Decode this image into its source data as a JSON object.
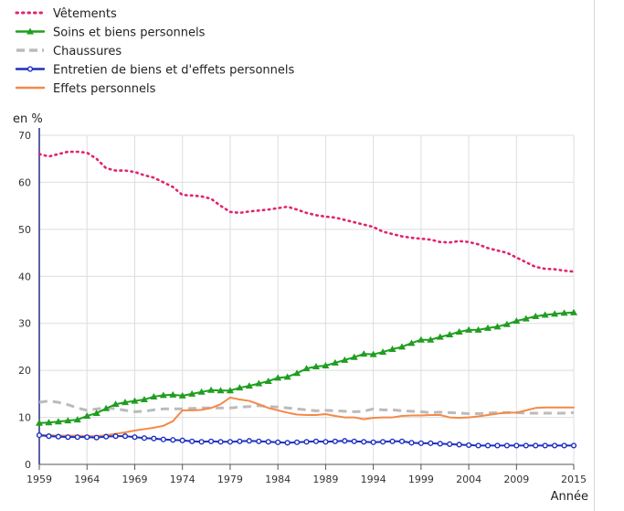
{
  "chart_data": {
    "type": "line",
    "title": "",
    "xlabel": "Année",
    "ylabel": "en %",
    "xlim": [
      1959,
      2015
    ],
    "ylim": [
      0,
      70
    ],
    "y_ticks": [
      0,
      10,
      20,
      30,
      40,
      50,
      60,
      70
    ],
    "x_ticks": [
      1959,
      1964,
      1969,
      1974,
      1979,
      1984,
      1989,
      1994,
      1999,
      2004,
      2009,
      2015
    ],
    "grid": "x and y",
    "legend_position": "top-left",
    "series": [
      {
        "name": "Vêtements",
        "color": "#e0246e",
        "style": "dotted",
        "x": [
          1959,
          1960,
          1961,
          1962,
          1963,
          1964,
          1965,
          1966,
          1967,
          1968,
          1969,
          1970,
          1971,
          1972,
          1973,
          1974,
          1975,
          1976,
          1977,
          1978,
          1979,
          1980,
          1981,
          1982,
          1983,
          1984,
          1985,
          1986,
          1987,
          1988,
          1989,
          1990,
          1991,
          1992,
          1993,
          1994,
          1995,
          1996,
          1997,
          1998,
          1999,
          2000,
          2001,
          2002,
          2003,
          2004,
          2005,
          2006,
          2007,
          2008,
          2009,
          2010,
          2011,
          2012,
          2013,
          2014,
          2015
        ],
        "values": [
          66.0,
          65.5,
          66.0,
          66.5,
          66.5,
          66.3,
          65.0,
          63.0,
          62.5,
          62.5,
          62.2,
          61.5,
          61.0,
          60.0,
          59.0,
          57.3,
          57.2,
          57.0,
          56.5,
          55.0,
          53.7,
          53.5,
          53.8,
          54.0,
          54.2,
          54.5,
          54.8,
          54.2,
          53.5,
          53.0,
          52.7,
          52.5,
          52.0,
          51.5,
          51.0,
          50.5,
          49.5,
          49.0,
          48.5,
          48.2,
          48.0,
          47.8,
          47.3,
          47.2,
          47.5,
          47.3,
          46.8,
          46.0,
          45.5,
          45.0,
          44.0,
          43.0,
          42.0,
          41.6,
          41.5,
          41.2,
          41.0
        ]
      },
      {
        "name": "Soins et biens personnels",
        "color": "#1f9e1f",
        "style": "solid-triangle",
        "x": [
          1959,
          1960,
          1961,
          1962,
          1963,
          1964,
          1965,
          1966,
          1967,
          1968,
          1969,
          1970,
          1971,
          1972,
          1973,
          1974,
          1975,
          1976,
          1977,
          1978,
          1979,
          1980,
          1981,
          1982,
          1983,
          1984,
          1985,
          1986,
          1987,
          1988,
          1989,
          1990,
          1991,
          1992,
          1993,
          1994,
          1995,
          1996,
          1997,
          1998,
          1999,
          2000,
          2001,
          2002,
          2003,
          2004,
          2005,
          2006,
          2007,
          2008,
          2009,
          2010,
          2011,
          2012,
          2013,
          2014,
          2015
        ],
        "values": [
          8.8,
          8.9,
          9.1,
          9.3,
          9.5,
          10.3,
          10.9,
          11.9,
          12.8,
          13.2,
          13.5,
          13.8,
          14.4,
          14.7,
          14.8,
          14.6,
          15.0,
          15.4,
          15.8,
          15.7,
          15.7,
          16.3,
          16.7,
          17.2,
          17.7,
          18.4,
          18.6,
          19.4,
          20.4,
          20.8,
          21.0,
          21.6,
          22.2,
          22.8,
          23.5,
          23.4,
          23.9,
          24.5,
          25.0,
          25.8,
          26.5,
          26.5,
          27.1,
          27.6,
          28.2,
          28.6,
          28.6,
          29.0,
          29.3,
          29.8,
          30.5,
          31.0,
          31.5,
          31.8,
          32.0,
          32.2,
          32.3
        ]
      },
      {
        "name": "Chaussures",
        "color": "#bbbbbb",
        "style": "dashed",
        "x": [
          1959,
          1960,
          1961,
          1962,
          1963,
          1964,
          1965,
          1966,
          1967,
          1968,
          1969,
          1970,
          1971,
          1972,
          1973,
          1974,
          1975,
          1976,
          1977,
          1978,
          1979,
          1980,
          1981,
          1982,
          1983,
          1984,
          1985,
          1986,
          1987,
          1988,
          1989,
          1990,
          1991,
          1992,
          1993,
          1994,
          1995,
          1996,
          1997,
          1998,
          1999,
          2000,
          2001,
          2002,
          2003,
          2004,
          2005,
          2006,
          2007,
          2008,
          2009,
          2010,
          2011,
          2012,
          2013,
          2014,
          2015
        ],
        "values": [
          13.2,
          13.5,
          13.2,
          12.7,
          12.0,
          11.5,
          11.8,
          12.0,
          11.8,
          11.5,
          11.2,
          11.3,
          11.6,
          11.8,
          11.8,
          11.8,
          11.9,
          12.0,
          12.0,
          12.0,
          12.0,
          12.2,
          12.3,
          12.5,
          12.3,
          12.2,
          12.0,
          11.8,
          11.6,
          11.4,
          11.5,
          11.4,
          11.3,
          11.2,
          11.3,
          11.8,
          11.6,
          11.6,
          11.4,
          11.3,
          11.2,
          11.0,
          11.1,
          11.0,
          10.9,
          10.8,
          10.8,
          10.9,
          11.0,
          11.0,
          11.0,
          10.9,
          10.9,
          10.9,
          10.9,
          10.9,
          11.0
        ]
      },
      {
        "name": "Entretien de biens et d'effets personnels",
        "color": "#1f2fbf",
        "style": "solid-circle",
        "x": [
          1959,
          1960,
          1961,
          1962,
          1963,
          1964,
          1965,
          1966,
          1967,
          1968,
          1969,
          1970,
          1971,
          1972,
          1973,
          1974,
          1975,
          1976,
          1977,
          1978,
          1979,
          1980,
          1981,
          1982,
          1983,
          1984,
          1985,
          1986,
          1987,
          1988,
          1989,
          1990,
          1991,
          1992,
          1993,
          1994,
          1995,
          1996,
          1997,
          1998,
          1999,
          2000,
          2001,
          2002,
          2003,
          2004,
          2005,
          2006,
          2007,
          2008,
          2009,
          2010,
          2011,
          2012,
          2013,
          2014,
          2015
        ],
        "values": [
          6.2,
          6.0,
          5.9,
          5.8,
          5.8,
          5.8,
          5.7,
          5.9,
          6.0,
          6.0,
          5.8,
          5.6,
          5.5,
          5.3,
          5.2,
          5.1,
          4.9,
          4.8,
          4.9,
          4.8,
          4.8,
          4.9,
          5.0,
          4.9,
          4.8,
          4.7,
          4.6,
          4.7,
          4.8,
          4.9,
          4.8,
          4.9,
          5.0,
          4.9,
          4.8,
          4.7,
          4.8,
          4.9,
          4.9,
          4.6,
          4.5,
          4.5,
          4.4,
          4.3,
          4.2,
          4.1,
          4.0,
          4.0,
          4.0,
          4.0,
          4.0,
          4.0,
          4.0,
          4.0,
          4.0,
          4.0,
          4.0
        ]
      },
      {
        "name": "Effets personnels",
        "color": "#f4894a",
        "style": "solid",
        "x": [
          1959,
          1960,
          1961,
          1962,
          1963,
          1964,
          1965,
          1966,
          1967,
          1968,
          1969,
          1970,
          1971,
          1972,
          1973,
          1974,
          1975,
          1976,
          1977,
          1978,
          1979,
          1980,
          1981,
          1982,
          1983,
          1984,
          1985,
          1986,
          1987,
          1988,
          1989,
          1990,
          1991,
          1992,
          1993,
          1994,
          1995,
          1996,
          1997,
          1998,
          1999,
          2000,
          2001,
          2002,
          2003,
          2004,
          2005,
          2006,
          2007,
          2008,
          2009,
          2010,
          2011,
          2012,
          2013,
          2014,
          2015
        ],
        "values": [
          6.2,
          6.2,
          6.1,
          6.1,
          6.1,
          6.0,
          6.0,
          6.2,
          6.5,
          6.8,
          7.2,
          7.5,
          7.8,
          8.2,
          9.2,
          11.5,
          11.5,
          11.6,
          12.0,
          12.8,
          14.2,
          13.8,
          13.5,
          12.8,
          12.0,
          11.5,
          11.0,
          10.6,
          10.5,
          10.5,
          10.7,
          10.3,
          10.0,
          10.0,
          9.6,
          9.9,
          10.0,
          10.0,
          10.3,
          10.4,
          10.4,
          10.5,
          10.5,
          10.0,
          9.9,
          10.0,
          10.2,
          10.5,
          10.8,
          11.0,
          11.0,
          11.5,
          12.0,
          12.1,
          12.1,
          12.1,
          12.1
        ]
      }
    ]
  }
}
